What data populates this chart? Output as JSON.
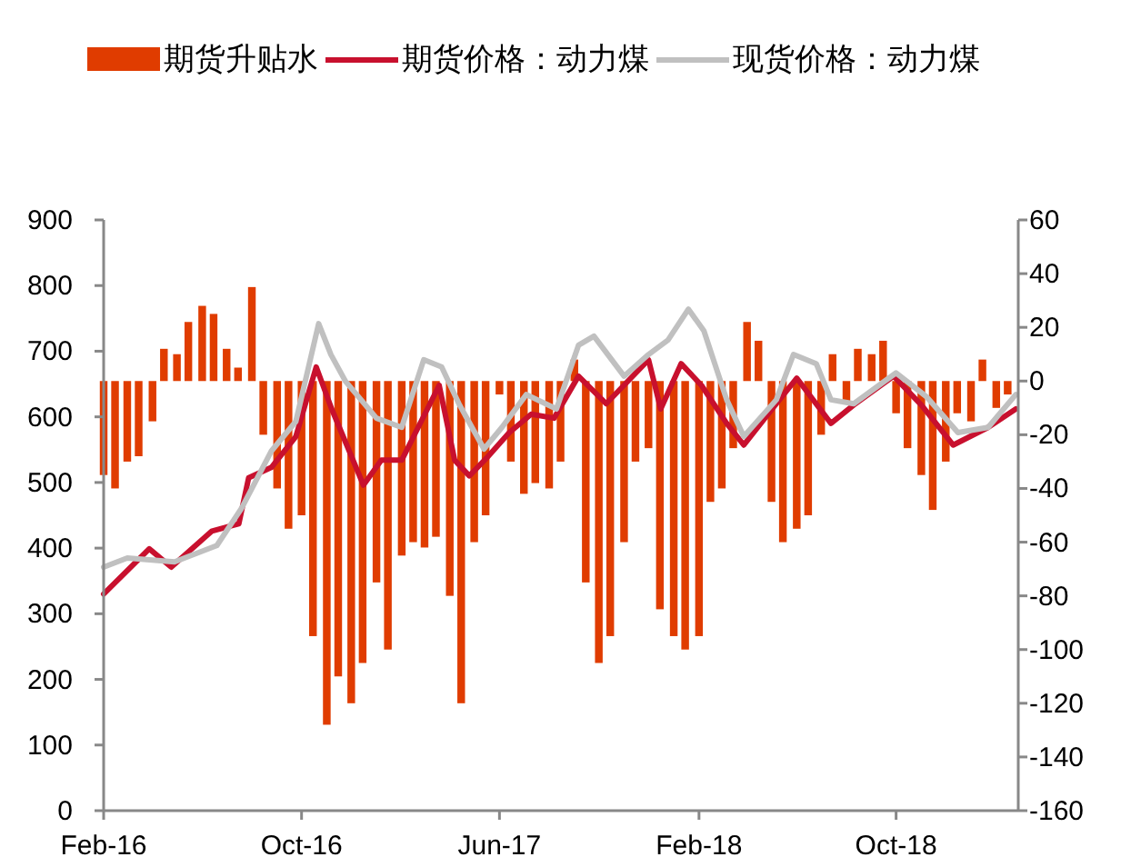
{
  "chart_data": {
    "type": "bar",
    "legend": "top",
    "grid": false,
    "xlim": [
      "2016-02-01",
      "2019-02-28"
    ],
    "xticks": [
      {
        "value": "2016-02-01",
        "label": "Feb-16"
      },
      {
        "value": "2016-10-01",
        "label": "Oct-16"
      },
      {
        "value": "2017-06-01",
        "label": "Jun-17"
      },
      {
        "value": "2018-02-01",
        "label": "Feb-18"
      },
      {
        "value": "2018-10-01",
        "label": "Oct-18"
      }
    ],
    "ylim": [
      0,
      900
    ],
    "yticks": [
      0,
      100,
      200,
      300,
      400,
      500,
      600,
      700,
      800,
      900
    ],
    "y2lim": [
      -160,
      60
    ],
    "y2ticks": [
      -160,
      -140,
      -120,
      -100,
      -80,
      -60,
      -40,
      -20,
      0,
      20,
      40,
      60
    ],
    "series": [
      {
        "name": "期货升贴水",
        "axis": "y2",
        "color": "#e03c00",
        "x": [
          "2016-02-01",
          "2016-02-15",
          "2016-03-01",
          "2016-03-15",
          "2016-04-01",
          "2016-04-15",
          "2016-05-01",
          "2016-05-15",
          "2016-06-01",
          "2016-06-15",
          "2016-07-01",
          "2016-07-15",
          "2016-08-01",
          "2016-08-15",
          "2016-09-01",
          "2016-09-15",
          "2016-10-01",
          "2016-10-15",
          "2016-11-01",
          "2016-11-15",
          "2016-12-01",
          "2016-12-15",
          "2017-01-01",
          "2017-01-15",
          "2017-02-01",
          "2017-02-15",
          "2017-03-01",
          "2017-03-15",
          "2017-04-01",
          "2017-04-15",
          "2017-05-01",
          "2017-05-15",
          "2017-06-01",
          "2017-06-15",
          "2017-07-01",
          "2017-07-15",
          "2017-08-01",
          "2017-08-15",
          "2017-09-01",
          "2017-09-15",
          "2017-10-01",
          "2017-10-15",
          "2017-11-01",
          "2017-11-15",
          "2017-12-01",
          "2017-12-15",
          "2018-01-01",
          "2018-01-15",
          "2018-02-01",
          "2018-02-15",
          "2018-03-01",
          "2018-03-15",
          "2018-04-01",
          "2018-04-15",
          "2018-05-01",
          "2018-05-15",
          "2018-06-01",
          "2018-06-15",
          "2018-07-01",
          "2018-07-15",
          "2018-08-01",
          "2018-08-15",
          "2018-09-01",
          "2018-09-15",
          "2018-10-01",
          "2018-10-15",
          "2018-11-01",
          "2018-11-15",
          "2018-12-01",
          "2018-12-15",
          "2019-01-01",
          "2019-01-15",
          "2019-02-01",
          "2019-02-15"
        ],
        "values": [
          -35,
          -40,
          -30,
          -28,
          -15,
          12,
          10,
          22,
          28,
          25,
          12,
          5,
          35,
          -20,
          -40,
          -55,
          -50,
          -95,
          -128,
          -110,
          -120,
          -105,
          -75,
          -100,
          -65,
          -60,
          -62,
          -58,
          -80,
          -120,
          -60,
          -50,
          -5,
          -30,
          -42,
          -38,
          -40,
          -30,
          8,
          -75,
          -105,
          -95,
          -60,
          -30,
          -25,
          -85,
          -95,
          -100,
          -95,
          -45,
          -40,
          -25,
          22,
          15,
          -45,
          -60,
          -55,
          -50,
          -20,
          10,
          -8,
          12,
          10,
          15,
          -12,
          -25,
          -35,
          -48,
          -30,
          -12,
          -15,
          8,
          -10,
          -5
        ]
      },
      {
        "name": "期货价格：动力煤",
        "type": "line",
        "color": "#c8102e",
        "x": [
          "2016-02-01",
          "2016-03-28",
          "2016-04-24",
          "2016-06-13",
          "2016-07-16",
          "2016-07-28",
          "2016-08-25",
          "2016-09-24",
          "2016-10-19",
          "2016-11-07",
          "2016-12-16",
          "2017-01-07",
          "2017-02-01",
          "2017-03-19",
          "2017-04-07",
          "2017-04-25",
          "2017-05-16",
          "2017-06-13",
          "2017-07-10",
          "2017-08-07",
          "2017-09-06",
          "2017-10-10",
          "2017-12-01",
          "2017-12-16",
          "2018-01-10",
          "2018-02-04",
          "2018-03-07",
          "2018-03-28",
          "2018-05-07",
          "2018-06-01",
          "2018-07-13",
          "2018-08-10",
          "2018-09-28",
          "2018-11-01",
          "2018-12-10",
          "2019-01-22",
          "2019-02-25"
        ],
        "values": [
          330,
          399,
          371,
          426,
          437,
          507,
          523,
          570,
          676,
          612,
          496,
          534,
          534,
          648,
          534,
          510,
          537,
          576,
          604,
          598,
          662,
          620,
          687,
          612,
          681,
          648,
          590,
          557,
          620,
          659,
          590,
          618,
          662,
          618,
          557,
          584,
          612
        ]
      },
      {
        "name": "现货价格：动力煤",
        "type": "line",
        "color": "#c0c0c0",
        "x": [
          "2016-02-01",
          "2016-03-01",
          "2016-04-28",
          "2016-06-19",
          "2016-07-19",
          "2016-08-25",
          "2016-09-24",
          "2016-10-22",
          "2016-11-06",
          "2016-11-24",
          "2017-01-01",
          "2017-02-01",
          "2017-02-28",
          "2017-03-22",
          "2017-04-13",
          "2017-05-13",
          "2017-06-04",
          "2017-07-04",
          "2017-08-10",
          "2017-09-06",
          "2017-09-25",
          "2017-11-01",
          "2017-12-01",
          "2017-12-25",
          "2018-01-19",
          "2018-02-07",
          "2018-03-07",
          "2018-03-28",
          "2018-05-07",
          "2018-05-28",
          "2018-06-25",
          "2018-07-13",
          "2018-08-10",
          "2018-10-01",
          "2018-11-07",
          "2018-12-16",
          "2019-01-22",
          "2019-02-25"
        ],
        "values": [
          371,
          385,
          379,
          404,
          460,
          548,
          593,
          742,
          695,
          654,
          598,
          584,
          687,
          676,
          618,
          551,
          584,
          634,
          612,
          709,
          723,
          662,
          695,
          717,
          764,
          731,
          626,
          570,
          626,
          695,
          681,
          626,
          620,
          667,
          631,
          576,
          584,
          634
        ]
      }
    ]
  }
}
